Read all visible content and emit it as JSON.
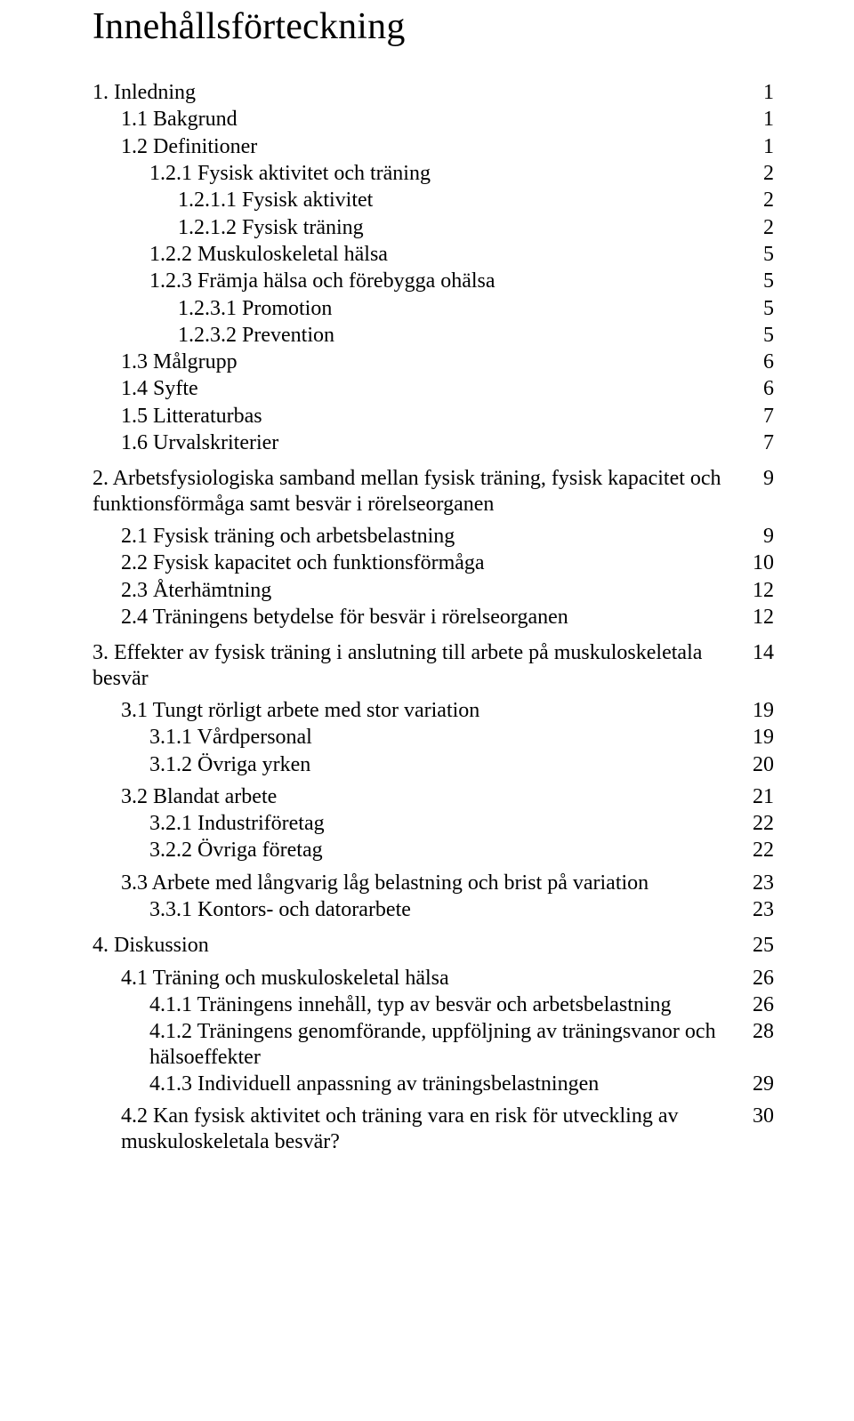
{
  "title": "Innehållsförteckning",
  "toc": [
    {
      "label": "1. Inledning",
      "page": "1",
      "indent": 0,
      "gapAfter": "none"
    },
    {
      "label": "1.1 Bakgrund",
      "page": "1",
      "indent": 1,
      "gapAfter": "none"
    },
    {
      "label": "1.2 Definitioner",
      "page": "1",
      "indent": 1,
      "gapAfter": "none"
    },
    {
      "label": "1.2.1 Fysisk aktivitet och träning",
      "page": "2",
      "indent": 2,
      "gapAfter": "none"
    },
    {
      "label": "1.2.1.1 Fysisk aktivitet",
      "page": "2",
      "indent": 3,
      "gapAfter": "none"
    },
    {
      "label": "1.2.1.2 Fysisk träning",
      "page": "2",
      "indent": 3,
      "gapAfter": "none"
    },
    {
      "label": "1.2.2 Muskuloskeletal hälsa",
      "page": "5",
      "indent": 2,
      "gapAfter": "none"
    },
    {
      "label": "1.2.3 Främja hälsa och förebygga ohälsa",
      "page": "5",
      "indent": 2,
      "gapAfter": "none"
    },
    {
      "label": "1.2.3.1 Promotion",
      "page": "5",
      "indent": 3,
      "gapAfter": "none"
    },
    {
      "label": "1.2.3.2 Prevention",
      "page": "5",
      "indent": 3,
      "gapAfter": "none"
    },
    {
      "label": "1.3 Målgrupp",
      "page": "6",
      "indent": 1,
      "gapAfter": "none"
    },
    {
      "label": "1.4 Syfte",
      "page": "6",
      "indent": 1,
      "gapAfter": "none"
    },
    {
      "label": "1.5 Litteraturbas",
      "page": "7",
      "indent": 1,
      "gapAfter": "none"
    },
    {
      "label": "1.6 Urvalskriterier",
      "page": "7",
      "indent": 1,
      "gapAfter": "med"
    },
    {
      "label": "2. Arbetsfysiologiska samband mellan fysisk träning, fysisk kapacitet och funktionsförmåga samt besvär i rörelseorganen",
      "page": "9",
      "indent": 0,
      "gapAfter": "small"
    },
    {
      "label": "2.1 Fysisk träning och arbetsbelastning",
      "page": "9",
      "indent": 1,
      "gapAfter": "none"
    },
    {
      "label": "2.2 Fysisk kapacitet och funktionsförmåga",
      "page": "10",
      "indent": 1,
      "gapAfter": "none"
    },
    {
      "label": "2.3 Återhämtning",
      "page": "12",
      "indent": 1,
      "gapAfter": "none"
    },
    {
      "label": "2.4 Träningens betydelse för besvär i rörelseorganen",
      "page": "12",
      "indent": 1,
      "gapAfter": "med"
    },
    {
      "label": "3. Effekter av fysisk träning i anslutning till arbete på muskuloskeletala besvär",
      "page": "14",
      "indent": 0,
      "gapAfter": "small"
    },
    {
      "label": "3.1 Tungt rörligt arbete med stor variation",
      "page": "19",
      "indent": 1,
      "gapAfter": "none"
    },
    {
      "label": "3.1.1 Vårdpersonal",
      "page": "19",
      "indent": 2,
      "gapAfter": "none"
    },
    {
      "label": "3.1.2 Övriga yrken",
      "page": "20",
      "indent": 2,
      "gapAfter": "small"
    },
    {
      "label": "3.2 Blandat arbete",
      "page": "21",
      "indent": 1,
      "gapAfter": "none"
    },
    {
      "label": "3.2.1 Industriföretag",
      "page": "22",
      "indent": 2,
      "gapAfter": "none"
    },
    {
      "label": "3.2.2 Övriga företag",
      "page": "22",
      "indent": 2,
      "gapAfter": "small"
    },
    {
      "label": "3.3 Arbete med långvarig låg belastning och brist på variation",
      "page": "23",
      "indent": 1,
      "gapAfter": "none"
    },
    {
      "label": "3.3.1 Kontors- och datorarbete",
      "page": "23",
      "indent": 2,
      "gapAfter": "med"
    },
    {
      "label": "4. Diskussion",
      "page": "25",
      "indent": 0,
      "gapAfter": "small"
    },
    {
      "label": "4.1 Träning och muskuloskeletal hälsa",
      "page": "26",
      "indent": 1,
      "gapAfter": "none"
    },
    {
      "label": "4.1.1 Träningens innehåll, typ av besvär och arbetsbelastning",
      "page": "26",
      "indent": 2,
      "gapAfter": "none"
    },
    {
      "label": "4.1.2 Träningens genomförande, uppföljning av träningsvanor och hälsoeffekter",
      "page": "28",
      "indent": 2,
      "gapAfter": "none"
    },
    {
      "label": "4.1.3 Individuell anpassning av träningsbelastningen",
      "page": "29",
      "indent": 2,
      "gapAfter": "small"
    },
    {
      "label": "4.2 Kan fysisk aktivitet och träning vara en risk för utveckling av muskuloskeletala besvär?",
      "page": "30",
      "indent": 1,
      "gapAfter": "none"
    }
  ]
}
